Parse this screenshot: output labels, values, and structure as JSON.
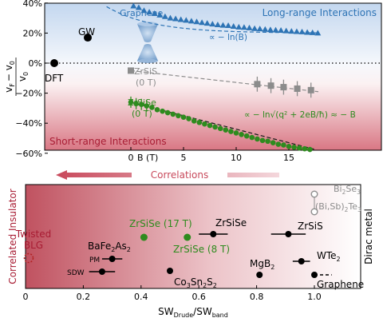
{
  "chart_data": [
    {
      "type": "scatter",
      "panel": "top",
      "ylabel_lhs": "v",
      "ylabel_lhs_sub": "F",
      "ylabel_rhs": "− v",
      "ylabel_rhs_sub": "0",
      "ylabel_den": "v",
      "ylabel_den_sub": "0",
      "xlabel": "B (T)",
      "ylim": [
        -60,
        40
      ],
      "yticks": [
        40,
        20,
        0,
        -20,
        -40,
        -60
      ],
      "ytick_labels": [
        "40%",
        "20%",
        "0%",
        "−20%",
        "−40%",
        "−60%"
      ],
      "xticks": [
        0,
        5,
        10,
        15
      ],
      "xtick_labels": [
        "0",
        "5",
        "10",
        "15"
      ],
      "x_break": "B (T) axis begins after the DFT / GW points",
      "points": [
        {
          "label": "GW",
          "value_percent": 17
        },
        {
          "label": "DFT",
          "value_percent": 0
        }
      ],
      "series": [
        {
          "name": "Graphene",
          "color": "#2e74b5",
          "marker": "triangle",
          "fit_label": "∝ − ln(B)",
          "x": [
            0.25,
            0.75,
            1.25,
            1.75,
            2.25,
            2.75,
            3.25,
            3.75,
            4.25,
            4.75,
            5.25,
            5.75,
            6.25,
            6.75,
            7.25,
            7.75,
            8.25,
            8.75,
            9.25,
            9.75,
            10.25,
            10.75,
            11.25,
            11.75,
            12.25,
            12.75,
            13.25,
            13.75,
            14.25,
            14.75,
            15.25,
            15.75,
            16.25,
            16.75,
            17.25,
            17.75
          ],
          "y": [
            38,
            37,
            35,
            34,
            33,
            32,
            31,
            30,
            29.5,
            29,
            28.5,
            28,
            27.5,
            27,
            26.5,
            26,
            25.5,
            25.2,
            25,
            24.5,
            24,
            23.8,
            23.5,
            23,
            22.8,
            22.5,
            22.2,
            22,
            21.8,
            21.5,
            21.2,
            21,
            20.8,
            20.5,
            20.3,
            20
          ]
        },
        {
          "name": "ZrSiS (0 T)",
          "color": "#8c8c8c",
          "marker": "square",
          "x": [
            0,
            12,
            13.3,
            14.5,
            15.8,
            17.1
          ],
          "y": [
            -5,
            -14,
            -15,
            -16,
            -17,
            -18
          ],
          "yerr": [
            2,
            5,
            5,
            5,
            5,
            5
          ]
        },
        {
          "name": "ZrSiSe (0 T)",
          "color": "#2e8b1e",
          "marker": "circle",
          "fit_label": "∝ − ln√(q² + 2eB/ħ) ≈ − B",
          "x": [
            0,
            0.5,
            1,
            1.5,
            2,
            2.5,
            3,
            3.5,
            4,
            4.5,
            5,
            5.5,
            6,
            6.5,
            7,
            7.5,
            8,
            8.5,
            9,
            9.5,
            10,
            10.5,
            11,
            11.5,
            12,
            12.5,
            13,
            13.5,
            14,
            14.5,
            15,
            15.5,
            16,
            16.5,
            17
          ],
          "y": [
            -26,
            -27,
            -27.5,
            -28.5,
            -29.5,
            -31,
            -32,
            -33,
            -34,
            -35,
            -36,
            -37,
            -38.5,
            -39.5,
            -40.5,
            -41.5,
            -42.5,
            -43.5,
            -44.5,
            -45.5,
            -46.5,
            -47.5,
            -48.5,
            -49.5,
            -50.5,
            -51.5,
            -52,
            -53,
            -54,
            -54.5,
            -55.5,
            -56,
            -56.5,
            -57,
            -57.5
          ]
        }
      ],
      "annotations": [
        "Graphene",
        "Long-range Interactions",
        "Short-range Interactions",
        "ZrSiS",
        "(0 T)",
        "ZrSiSe",
        "(0 T)",
        "GW",
        "DFT"
      ]
    },
    {
      "type": "scatter",
      "panel": "bottom",
      "xlabel_main": "SW",
      "xlabel_num_sub": "Drude",
      "xlabel_den_main": "SW",
      "xlabel_den_sub": "band",
      "xlim": [
        0,
        1.1
      ],
      "xticks": [
        0,
        0.2,
        0.4,
        0.6,
        0.8,
        1.0
      ],
      "xtick_labels": [
        "0",
        "0.2",
        "0.4",
        "0.6",
        "0.8",
        "1.0"
      ],
      "left_label": "Correlated Insulator",
      "right_label": "Dirac metal",
      "arrow_label": "Correlations",
      "points": [
        {
          "label": "Twisted BLG",
          "x": 0.0,
          "color": "#b22222",
          "style": "open-dashed"
        },
        {
          "label": "PM",
          "x": 0.3,
          "xerr": 0.035,
          "color": "#000000"
        },
        {
          "label": "SDW",
          "x": 0.265,
          "xerr": 0.045,
          "color": "#000000"
        },
        {
          "label": "ZrSiSe (17 T)",
          "x": 0.41,
          "color": "#2e8b1e"
        },
        {
          "label": "ZrSiSe (8 T)",
          "x": 0.56,
          "color": "#2e8b1e"
        },
        {
          "label": "ZrSiSe",
          "x": 0.65,
          "xerr": 0.05,
          "color": "#000000"
        },
        {
          "label": "Co3Sn2S2",
          "x": 0.5,
          "color": "#000000"
        },
        {
          "label": "MgB2",
          "x": 0.81,
          "color": "#000000"
        },
        {
          "label": "ZrSiS",
          "x": 0.91,
          "xerr": 0.06,
          "color": "#000000"
        },
        {
          "label": "WTe2",
          "x": 0.955,
          "xerr": 0.03,
          "color": "#000000"
        },
        {
          "label": "Graphene",
          "x": 1.0,
          "color": "#000000"
        },
        {
          "label": "Bi2Se3",
          "x": 1.0,
          "color": "#8c8c8c",
          "style": "open"
        },
        {
          "label": "(Bi,Sb)2Te3",
          "x": 1.0,
          "color": "#8c8c8c",
          "style": "open"
        }
      ],
      "labels": {
        "twisted": "Twisted",
        "blg": "BLG",
        "bafe": "BaFe",
        "bafe_sub": "2",
        "as": "As",
        "as_sub": "2",
        "pm": "PM",
        "sdw": "SDW",
        "zrsise17": "ZrSiSe (17 T)",
        "zrsise8": "ZrSiSe (8 T)",
        "zrsise": "ZrSiSe",
        "co": "Co",
        "co_sub": "3",
        "sn": "Sn",
        "sn_sub": "2",
        "s": "S",
        "s_sub": "2",
        "mg": "MgB",
        "mg_sub": "2",
        "zrsis": "ZrSiS",
        "wte": "WTe",
        "wte_sub": "2",
        "graphene": "Graphene",
        "bise": "Bi",
        "bise_sub": "2",
        "se": "Se",
        "se_sub": "3",
        "bisb": "(Bi,Sb)",
        "bisb_sub": "2",
        "te": "Te",
        "te_sub": "3"
      }
    }
  ]
}
